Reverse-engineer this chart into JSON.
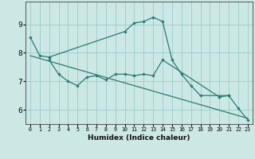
{
  "xlabel": "Humidex (Indice chaleur)",
  "bg_color": "#cce8e4",
  "line_color": "#2a7a70",
  "grid_color": "#99cccc",
  "xlim": [
    -0.5,
    23.5
  ],
  "ylim": [
    5.5,
    9.8
  ],
  "yticks": [
    6,
    7,
    8,
    9
  ],
  "xticks": [
    0,
    1,
    2,
    3,
    4,
    5,
    6,
    7,
    8,
    9,
    10,
    11,
    12,
    13,
    14,
    15,
    16,
    17,
    18,
    19,
    20,
    21,
    22,
    23
  ],
  "line1_x": [
    0,
    1,
    2,
    10,
    11,
    12,
    13,
    14,
    15,
    16,
    17,
    18,
    21,
    22,
    23
  ],
  "line1_y": [
    8.55,
    7.9,
    7.85,
    8.75,
    9.05,
    9.1,
    9.25,
    9.1,
    7.75,
    7.25,
    6.85,
    6.5,
    6.5,
    6.05,
    5.65
  ],
  "line2_x": [
    2,
    3,
    4,
    5,
    6,
    7,
    8,
    9,
    10,
    11,
    12,
    13,
    14,
    20,
    21
  ],
  "line2_y": [
    7.75,
    7.25,
    7.0,
    6.85,
    7.15,
    7.2,
    7.05,
    7.25,
    7.25,
    7.2,
    7.25,
    7.2,
    7.75,
    6.45,
    6.5
  ],
  "line3_x": [
    0,
    23
  ],
  "line3_y": [
    7.9,
    5.7
  ],
  "marker_line1_x": [
    0,
    1,
    2,
    10,
    11,
    12,
    13,
    14,
    15,
    16,
    17,
    18,
    21,
    22,
    23
  ],
  "marker_line1_y": [
    8.55,
    7.9,
    7.85,
    8.75,
    9.05,
    9.1,
    9.25,
    9.1,
    7.75,
    7.25,
    6.85,
    6.5,
    6.5,
    6.05,
    5.65
  ],
  "marker_line2_x": [
    2,
    3,
    4,
    5,
    6,
    7,
    8,
    9,
    10,
    11,
    12,
    13,
    14,
    20,
    21
  ],
  "marker_line2_y": [
    7.75,
    7.25,
    7.0,
    6.85,
    7.15,
    7.2,
    7.05,
    7.25,
    7.25,
    7.2,
    7.25,
    7.2,
    7.75,
    6.45,
    6.5
  ]
}
